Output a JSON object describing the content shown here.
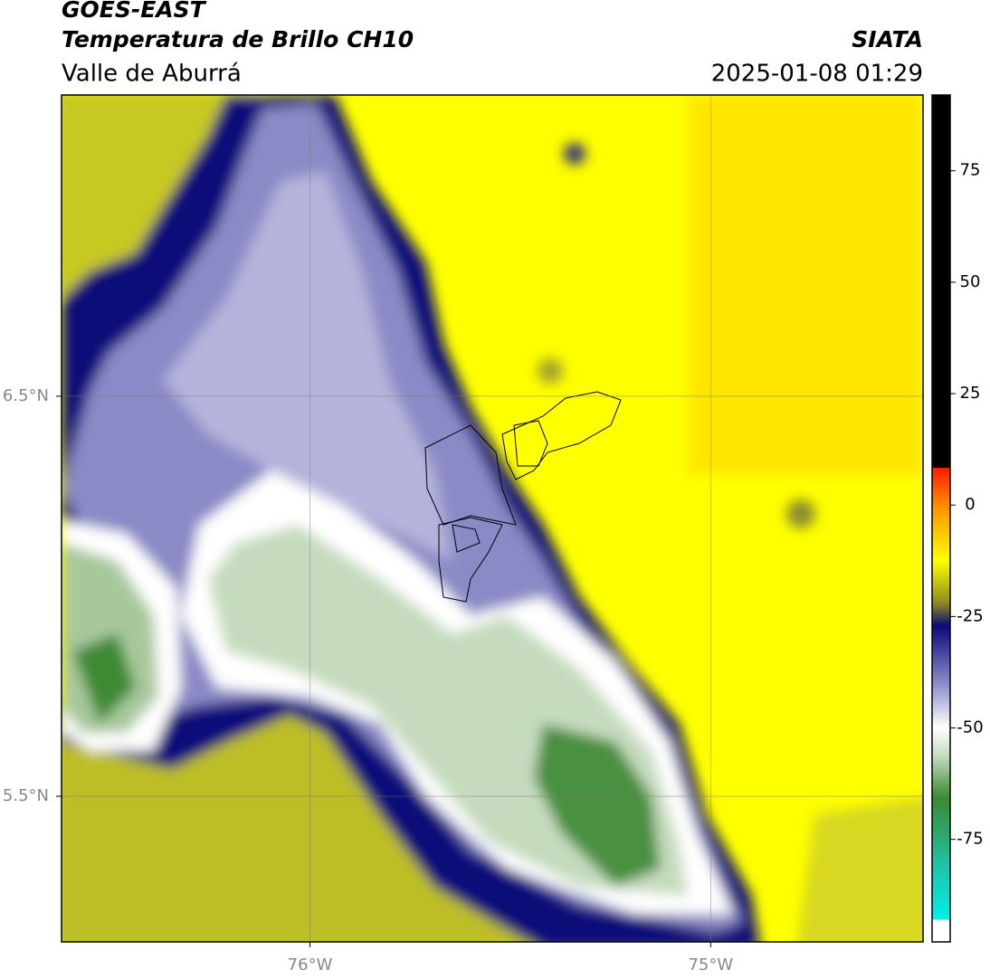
{
  "header": {
    "satellite": "GOES-EAST",
    "product": "Temperatura de Brillo CH10",
    "region": "Valle de Aburrá",
    "source": "SIATA",
    "timestamp": "2025-01-08 01:29"
  },
  "map": {
    "xlim": [
      -76.62,
      -74.47
    ],
    "ylim": [
      5.136,
      7.253
    ],
    "xticks": [
      {
        "value": -76,
        "label": "76°W"
      },
      {
        "value": -75,
        "label": "75°W"
      }
    ],
    "yticks": [
      {
        "value": 6.5,
        "label": "6.5°N"
      },
      {
        "value": 5.5,
        "label": "5.5°N"
      }
    ]
  },
  "colorbar": {
    "lim": [
      -98,
      92
    ],
    "ticks": [
      75,
      50,
      25,
      0,
      -25,
      -50,
      -75
    ]
  }
}
